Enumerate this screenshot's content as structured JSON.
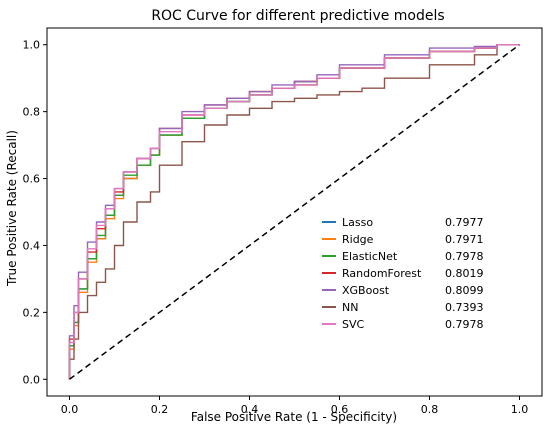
{
  "chart_data": {
    "type": "line",
    "title": "ROC Curve for different predictive models",
    "xlabel": "False Positive Rate (1 - Specificity)",
    "ylabel": "True Positive Rate (Recall)",
    "xlim": [
      -0.05,
      1.05
    ],
    "ylim": [
      -0.05,
      1.05
    ],
    "xticks": [
      "0.0",
      "0.2",
      "0.4",
      "0.6",
      "0.8",
      "1.0"
    ],
    "yticks": [
      "0.0",
      "0.2",
      "0.4",
      "0.6",
      "0.8",
      "1.0"
    ],
    "grid": false,
    "legend_position": "lower-right",
    "diagonal": {
      "x": [
        0,
        1
      ],
      "y": [
        0,
        1
      ],
      "style": "dashed",
      "color": "#000000"
    },
    "series": [
      {
        "name": "Lasso",
        "auc": "0.7977",
        "color": "#1f77b4",
        "x": [
          0,
          0.01,
          0.02,
          0.04,
          0.06,
          0.08,
          0.1,
          0.12,
          0.15,
          0.18,
          0.2,
          0.25,
          0.3,
          0.35,
          0.4,
          0.45,
          0.5,
          0.55,
          0.6,
          0.7,
          0.8,
          0.9,
          0.95,
          1.0
        ],
        "y": [
          0,
          0.1,
          0.17,
          0.27,
          0.36,
          0.42,
          0.49,
          0.55,
          0.6,
          0.64,
          0.67,
          0.73,
          0.78,
          0.81,
          0.83,
          0.85,
          0.87,
          0.88,
          0.9,
          0.93,
          0.96,
          0.98,
          0.99,
          1.0
        ]
      },
      {
        "name": "Ridge",
        "auc": "0.7971",
        "color": "#ff7f0e",
        "x": [
          0,
          0.01,
          0.02,
          0.04,
          0.06,
          0.08,
          0.1,
          0.12,
          0.15,
          0.18,
          0.2,
          0.25,
          0.3,
          0.35,
          0.4,
          0.45,
          0.5,
          0.55,
          0.6,
          0.7,
          0.8,
          0.9,
          0.95,
          1.0
        ],
        "y": [
          0,
          0.09,
          0.16,
          0.26,
          0.35,
          0.42,
          0.48,
          0.54,
          0.6,
          0.64,
          0.67,
          0.73,
          0.78,
          0.81,
          0.83,
          0.85,
          0.87,
          0.88,
          0.9,
          0.93,
          0.96,
          0.98,
          0.99,
          1.0
        ]
      },
      {
        "name": "ElasticNet",
        "auc": "0.7978",
        "color": "#2ca02c",
        "x": [
          0,
          0.01,
          0.02,
          0.04,
          0.06,
          0.08,
          0.1,
          0.12,
          0.15,
          0.18,
          0.2,
          0.25,
          0.3,
          0.35,
          0.4,
          0.45,
          0.5,
          0.55,
          0.6,
          0.7,
          0.8,
          0.9,
          0.95,
          1.0
        ],
        "y": [
          0,
          0.1,
          0.17,
          0.27,
          0.36,
          0.43,
          0.49,
          0.55,
          0.61,
          0.64,
          0.67,
          0.73,
          0.78,
          0.81,
          0.83,
          0.85,
          0.87,
          0.89,
          0.9,
          0.93,
          0.96,
          0.98,
          0.99,
          1.0
        ]
      },
      {
        "name": "RandomForest",
        "auc": "0.8019",
        "color": "#d62728",
        "x": [
          0,
          0.01,
          0.02,
          0.04,
          0.06,
          0.08,
          0.1,
          0.12,
          0.15,
          0.18,
          0.2,
          0.25,
          0.3,
          0.35,
          0.4,
          0.45,
          0.5,
          0.55,
          0.6,
          0.7,
          0.8,
          0.9,
          0.95,
          1.0
        ],
        "y": [
          0,
          0.12,
          0.2,
          0.3,
          0.38,
          0.45,
          0.51,
          0.56,
          0.62,
          0.66,
          0.69,
          0.75,
          0.79,
          0.82,
          0.84,
          0.86,
          0.87,
          0.89,
          0.9,
          0.93,
          0.96,
          0.98,
          0.99,
          1.0
        ]
      },
      {
        "name": "XGBoost",
        "auc": "0.8099",
        "color": "#9467bd",
        "x": [
          0,
          0.01,
          0.02,
          0.04,
          0.06,
          0.08,
          0.1,
          0.12,
          0.15,
          0.18,
          0.2,
          0.25,
          0.3,
          0.35,
          0.4,
          0.45,
          0.5,
          0.55,
          0.6,
          0.7,
          0.8,
          0.9,
          0.95,
          1.0
        ],
        "y": [
          0,
          0.13,
          0.22,
          0.32,
          0.41,
          0.47,
          0.52,
          0.57,
          0.62,
          0.66,
          0.69,
          0.75,
          0.8,
          0.82,
          0.84,
          0.86,
          0.88,
          0.89,
          0.91,
          0.94,
          0.97,
          0.99,
          0.995,
          1.0
        ]
      },
      {
        "name": "NN",
        "auc": "0.7393",
        "color": "#8c564b",
        "x": [
          0,
          0.01,
          0.02,
          0.04,
          0.06,
          0.08,
          0.1,
          0.12,
          0.15,
          0.18,
          0.2,
          0.25,
          0.3,
          0.35,
          0.4,
          0.45,
          0.5,
          0.55,
          0.6,
          0.65,
          0.7,
          0.8,
          0.9,
          0.95,
          1.0
        ],
        "y": [
          0,
          0.06,
          0.12,
          0.2,
          0.25,
          0.29,
          0.33,
          0.4,
          0.47,
          0.53,
          0.56,
          0.64,
          0.71,
          0.76,
          0.79,
          0.81,
          0.83,
          0.84,
          0.85,
          0.86,
          0.87,
          0.9,
          0.94,
          0.97,
          1.0
        ]
      },
      {
        "name": "SVC",
        "auc": "0.7978",
        "color": "#e377c2",
        "x": [
          0,
          0.01,
          0.02,
          0.04,
          0.06,
          0.08,
          0.1,
          0.12,
          0.15,
          0.18,
          0.2,
          0.25,
          0.3,
          0.35,
          0.4,
          0.45,
          0.5,
          0.55,
          0.6,
          0.7,
          0.8,
          0.9,
          0.95,
          1.0
        ],
        "y": [
          0,
          0.11,
          0.2,
          0.3,
          0.39,
          0.46,
          0.51,
          0.57,
          0.62,
          0.66,
          0.69,
          0.74,
          0.79,
          0.81,
          0.83,
          0.85,
          0.87,
          0.88,
          0.9,
          0.93,
          0.96,
          0.98,
          0.99,
          1.0
        ]
      }
    ]
  }
}
